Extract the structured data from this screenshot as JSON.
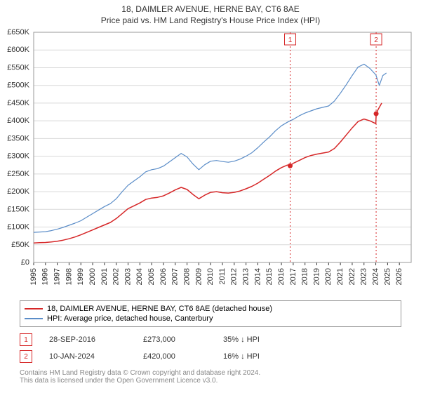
{
  "title": "18, DAIMLER AVENUE, HERNE BAY, CT6 8AE",
  "subtitle": "Price paid vs. HM Land Registry's House Price Index (HPI)",
  "chart": {
    "type": "line",
    "background": "#ffffff",
    "plot_bg": "#ffffff",
    "grid_color": "#d9d9d9",
    "axis_color": "#333333",
    "font_size_axis": 11,
    "x": {
      "min": 1995,
      "max": 2027,
      "ticks": [
        1995,
        1996,
        1997,
        1998,
        1999,
        2000,
        2001,
        2002,
        2003,
        2004,
        2005,
        2006,
        2007,
        2008,
        2009,
        2010,
        2011,
        2012,
        2013,
        2014,
        2015,
        2016,
        2017,
        2018,
        2019,
        2020,
        2021,
        2022,
        2023,
        2024,
        2025,
        2026
      ]
    },
    "y": {
      "min": 0,
      "max": 650000,
      "tick_step": 50000,
      "labels": [
        "£0",
        "£50K",
        "£100K",
        "£150K",
        "£200K",
        "£250K",
        "£300K",
        "£350K",
        "£400K",
        "£450K",
        "£500K",
        "£550K",
        "£600K",
        "£650K"
      ]
    },
    "series": [
      {
        "name": "18, DAIMLER AVENUE, HERNE BAY, CT6 8AE (detached house)",
        "color": "#d62728",
        "width": 1.5,
        "points": [
          [
            1995.0,
            55000
          ],
          [
            1995.5,
            56000
          ],
          [
            1996.0,
            56500
          ],
          [
            1996.5,
            58000
          ],
          [
            1997.0,
            60000
          ],
          [
            1997.5,
            63000
          ],
          [
            1998.0,
            67000
          ],
          [
            1998.5,
            72000
          ],
          [
            1999.0,
            78000
          ],
          [
            1999.5,
            85000
          ],
          [
            2000.0,
            92000
          ],
          [
            2000.5,
            99000
          ],
          [
            2001.0,
            106000
          ],
          [
            2001.5,
            113000
          ],
          [
            2002.0,
            124000
          ],
          [
            2002.5,
            138000
          ],
          [
            2003.0,
            152000
          ],
          [
            2003.5,
            160000
          ],
          [
            2004.0,
            168000
          ],
          [
            2004.5,
            178000
          ],
          [
            2005.0,
            182000
          ],
          [
            2005.5,
            184000
          ],
          [
            2006.0,
            188000
          ],
          [
            2006.5,
            196000
          ],
          [
            2007.0,
            205000
          ],
          [
            2007.5,
            212000
          ],
          [
            2008.0,
            206000
          ],
          [
            2008.5,
            192000
          ],
          [
            2009.0,
            180000
          ],
          [
            2009.5,
            190000
          ],
          [
            2010.0,
            198000
          ],
          [
            2010.5,
            200000
          ],
          [
            2011.0,
            197000
          ],
          [
            2011.5,
            196000
          ],
          [
            2012.0,
            198000
          ],
          [
            2012.5,
            202000
          ],
          [
            2013.0,
            208000
          ],
          [
            2013.5,
            215000
          ],
          [
            2014.0,
            224000
          ],
          [
            2014.5,
            235000
          ],
          [
            2015.0,
            246000
          ],
          [
            2015.5,
            258000
          ],
          [
            2016.0,
            268000
          ],
          [
            2016.5,
            275000
          ],
          [
            2016.74,
            273000
          ],
          [
            2017.0,
            280000
          ],
          [
            2017.5,
            288000
          ],
          [
            2018.0,
            296000
          ],
          [
            2018.5,
            302000
          ],
          [
            2019.0,
            306000
          ],
          [
            2019.5,
            309000
          ],
          [
            2020.0,
            312000
          ],
          [
            2020.5,
            322000
          ],
          [
            2021.0,
            340000
          ],
          [
            2021.5,
            360000
          ],
          [
            2022.0,
            380000
          ],
          [
            2022.5,
            398000
          ],
          [
            2023.0,
            405000
          ],
          [
            2023.5,
            400000
          ],
          [
            2024.0,
            392000
          ],
          [
            2024.03,
            420000
          ],
          [
            2024.2,
            432000
          ],
          [
            2024.5,
            450000
          ]
        ]
      },
      {
        "name": "HPI: Average price, detached house, Canterbury",
        "color": "#5b8dc8",
        "width": 1.2,
        "points": [
          [
            1995.0,
            85000
          ],
          [
            1995.5,
            86000
          ],
          [
            1996.0,
            87000
          ],
          [
            1996.5,
            90000
          ],
          [
            1997.0,
            94000
          ],
          [
            1997.5,
            99000
          ],
          [
            1998.0,
            105000
          ],
          [
            1998.5,
            111000
          ],
          [
            1999.0,
            118000
          ],
          [
            1999.5,
            128000
          ],
          [
            2000.0,
            138000
          ],
          [
            2000.5,
            148000
          ],
          [
            2001.0,
            158000
          ],
          [
            2001.5,
            166000
          ],
          [
            2002.0,
            180000
          ],
          [
            2002.5,
            200000
          ],
          [
            2003.0,
            218000
          ],
          [
            2003.5,
            230000
          ],
          [
            2004.0,
            242000
          ],
          [
            2004.5,
            256000
          ],
          [
            2005.0,
            262000
          ],
          [
            2005.5,
            265000
          ],
          [
            2006.0,
            272000
          ],
          [
            2006.5,
            284000
          ],
          [
            2007.0,
            296000
          ],
          [
            2007.5,
            308000
          ],
          [
            2008.0,
            298000
          ],
          [
            2008.5,
            278000
          ],
          [
            2009.0,
            262000
          ],
          [
            2009.5,
            276000
          ],
          [
            2010.0,
            286000
          ],
          [
            2010.5,
            288000
          ],
          [
            2011.0,
            285000
          ],
          [
            2011.5,
            283000
          ],
          [
            2012.0,
            286000
          ],
          [
            2012.5,
            292000
          ],
          [
            2013.0,
            300000
          ],
          [
            2013.5,
            310000
          ],
          [
            2014.0,
            324000
          ],
          [
            2014.5,
            340000
          ],
          [
            2015.0,
            355000
          ],
          [
            2015.5,
            372000
          ],
          [
            2016.0,
            386000
          ],
          [
            2016.5,
            396000
          ],
          [
            2017.0,
            404000
          ],
          [
            2017.5,
            414000
          ],
          [
            2018.0,
            422000
          ],
          [
            2018.5,
            428000
          ],
          [
            2019.0,
            434000
          ],
          [
            2019.5,
            438000
          ],
          [
            2020.0,
            442000
          ],
          [
            2020.5,
            456000
          ],
          [
            2021.0,
            478000
          ],
          [
            2021.5,
            502000
          ],
          [
            2022.0,
            528000
          ],
          [
            2022.5,
            552000
          ],
          [
            2023.0,
            560000
          ],
          [
            2023.5,
            548000
          ],
          [
            2024.0,
            530000
          ],
          [
            2024.3,
            500000
          ],
          [
            2024.6,
            528000
          ],
          [
            2024.9,
            535000
          ]
        ]
      }
    ],
    "sale_markers": [
      {
        "label": "1",
        "x": 2016.74,
        "y": 273000,
        "color": "#d62728"
      },
      {
        "label": "2",
        "x": 2024.03,
        "y": 420000,
        "color": "#d62728"
      }
    ]
  },
  "legend": {
    "items": [
      {
        "color": "#d62728",
        "label": "18, DAIMLER AVENUE, HERNE BAY, CT6 8AE (detached house)"
      },
      {
        "color": "#5b8dc8",
        "label": "HPI: Average price, detached house, Canterbury"
      }
    ]
  },
  "markers_table": [
    {
      "num": "1",
      "color": "#d62728",
      "date": "28-SEP-2016",
      "price": "£273,000",
      "pct": "35% ↓ HPI"
    },
    {
      "num": "2",
      "color": "#d62728",
      "date": "10-JAN-2024",
      "price": "£420,000",
      "pct": "16% ↓ HPI"
    }
  ],
  "footer": {
    "line1": "Contains HM Land Registry data © Crown copyright and database right 2024.",
    "line2": "This data is licensed under the Open Government Licence v3.0."
  }
}
